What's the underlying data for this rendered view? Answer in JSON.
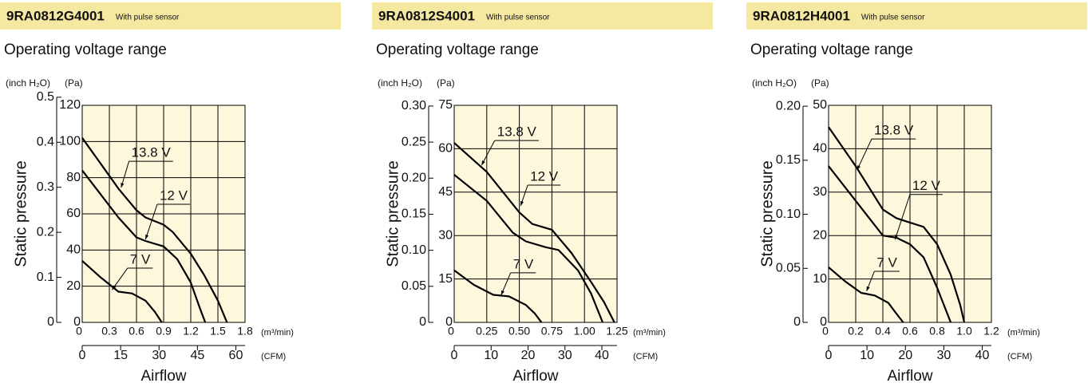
{
  "chart_data": [
    {
      "type": "line",
      "title": "9RA0812G4001",
      "subtitle": "With pulse sensor",
      "heading": "Operating voltage range",
      "y_label": "Static pressure",
      "y_unit": "(Pa)",
      "y2_unit": "(inch H₂O)",
      "x_label": "Airflow",
      "x_unit": "(m³/min)",
      "x2_unit": "(CFM)",
      "xlim": [
        0,
        1.8
      ],
      "xticks": [
        0,
        0.3,
        0.6,
        0.9,
        1.2,
        1.5,
        1.8
      ],
      "x2lim": [
        0,
        63.6
      ],
      "x2ticks": [
        0,
        15,
        30,
        45,
        60
      ],
      "ylim": [
        0,
        120
      ],
      "yticks": [
        0,
        20,
        40,
        60,
        80,
        100,
        120
      ],
      "y2lim": [
        0,
        0.482
      ],
      "y2ticks": [
        0,
        0.1,
        0.2,
        0.3,
        0.4,
        0.5
      ],
      "grid": true,
      "series": [
        {
          "name": "13.8 V",
          "color": "#000000",
          "x": [
            0,
            0.2,
            0.4,
            0.6,
            0.7,
            0.9,
            1.0,
            1.2,
            1.35,
            1.5,
            1.6
          ],
          "values": [
            102,
            88,
            74,
            62,
            58,
            54,
            50,
            38,
            26,
            12,
            0
          ]
        },
        {
          "name": "12 V",
          "color": "#000000",
          "x": [
            0,
            0.2,
            0.4,
            0.6,
            0.7,
            0.9,
            1.05,
            1.2,
            1.3,
            1.36
          ],
          "values": [
            84,
            71,
            58,
            47,
            45,
            42,
            35,
            22,
            8,
            0
          ]
        },
        {
          "name": "7 V",
          "color": "#000000",
          "x": [
            0,
            0.2,
            0.4,
            0.55,
            0.7,
            0.8,
            0.88
          ],
          "values": [
            34,
            25,
            17,
            16,
            12,
            6,
            0
          ]
        }
      ]
    },
    {
      "type": "line",
      "title": "9RA0812S4001",
      "subtitle": "With pulse sensor",
      "heading": "Operating voltage range",
      "y_label": "Static pressure",
      "y_unit": "(Pa)",
      "y2_unit": "(inch H₂O)",
      "x_label": "Airflow",
      "x_unit": "(m³/min)",
      "x2_unit": "(CFM)",
      "xlim": [
        0,
        1.25
      ],
      "xticks": [
        0,
        0.25,
        {
          "value": 0.5,
          "label": "0.50"
        },
        0.75,
        {
          "value": 1,
          "label": "1.00"
        },
        1.25
      ],
      "x2lim": [
        0,
        44.1
      ],
      "x2ticks": [
        0,
        10,
        20,
        30,
        40
      ],
      "ylim": [
        0,
        75
      ],
      "yticks": [
        0,
        15,
        30,
        45,
        60,
        75
      ],
      "y2lim": [
        0,
        0.301
      ],
      "y2ticks": [
        0,
        0.05,
        {
          "value": 0.1,
          "label": "0.10"
        },
        0.15,
        {
          "value": 0.2,
          "label": "0.20"
        },
        0.25,
        {
          "value": 0.3,
          "label": "0.30"
        }
      ],
      "grid": true,
      "series": [
        {
          "name": "13.8 V",
          "color": "#000000",
          "x": [
            0,
            0.25,
            0.5,
            0.6,
            0.75,
            0.9,
            1.05,
            1.15,
            1.23
          ],
          "values": [
            62,
            52,
            38,
            34,
            32,
            24,
            14,
            7,
            0
          ]
        },
        {
          "name": "12 V",
          "color": "#000000",
          "x": [
            0,
            0.25,
            0.45,
            0.55,
            0.7,
            0.8,
            0.95,
            1.05,
            1.14
          ],
          "values": [
            51,
            42,
            31,
            28,
            26,
            25,
            18,
            10,
            0
          ]
        },
        {
          "name": "7 V",
          "color": "#000000",
          "x": [
            0,
            0.15,
            0.3,
            0.42,
            0.55,
            0.62,
            0.67
          ],
          "values": [
            18,
            13,
            9.5,
            9,
            6,
            3,
            0
          ]
        }
      ]
    },
    {
      "type": "line",
      "title": "9RA0812H4001",
      "subtitle": "With pulse sensor",
      "heading": "Operating voltage range",
      "y_label": "Static pressure",
      "y_unit": "(Pa)",
      "y2_unit": "(inch H₂O)",
      "x_label": "Airflow",
      "x_unit": "(m³/min)",
      "x2_unit": "(CFM)",
      "xlim": [
        0,
        1.2
      ],
      "xticks": [
        0,
        0.2,
        0.4,
        0.6,
        0.8,
        {
          "value": 1,
          "label": "1.0"
        },
        1.2
      ],
      "x2lim": [
        0,
        42.4
      ],
      "x2ticks": [
        0,
        10,
        20,
        30,
        40
      ],
      "ylim": [
        0,
        50
      ],
      "yticks": [
        0,
        10,
        20,
        30,
        40,
        50
      ],
      "y2lim": [
        0,
        0.2008
      ],
      "y2ticks": [
        0,
        0.05,
        {
          "value": 0.1,
          "label": "0.10"
        },
        0.15,
        {
          "value": 0.2,
          "label": "0.20"
        }
      ],
      "grid": true,
      "series": [
        {
          "name": "13.8 V",
          "color": "#000000",
          "x": [
            0,
            0.2,
            0.4,
            0.5,
            0.6,
            0.7,
            0.8,
            0.9,
            0.97,
            1.0
          ],
          "values": [
            45,
            36,
            26,
            24,
            23,
            22,
            18,
            11,
            4,
            0
          ]
        },
        {
          "name": "12 V",
          "color": "#000000",
          "x": [
            0,
            0.2,
            0.4,
            0.5,
            0.6,
            0.7,
            0.8,
            0.9
          ],
          "values": [
            36,
            28,
            20,
            19.5,
            18,
            15,
            8,
            0
          ]
        },
        {
          "name": "7 V",
          "color": "#000000",
          "x": [
            0,
            0.12,
            0.24,
            0.34,
            0.44,
            0.5,
            0.55
          ],
          "values": [
            12.7,
            9.5,
            6.8,
            6.2,
            4.5,
            2,
            0
          ]
        }
      ]
    }
  ]
}
